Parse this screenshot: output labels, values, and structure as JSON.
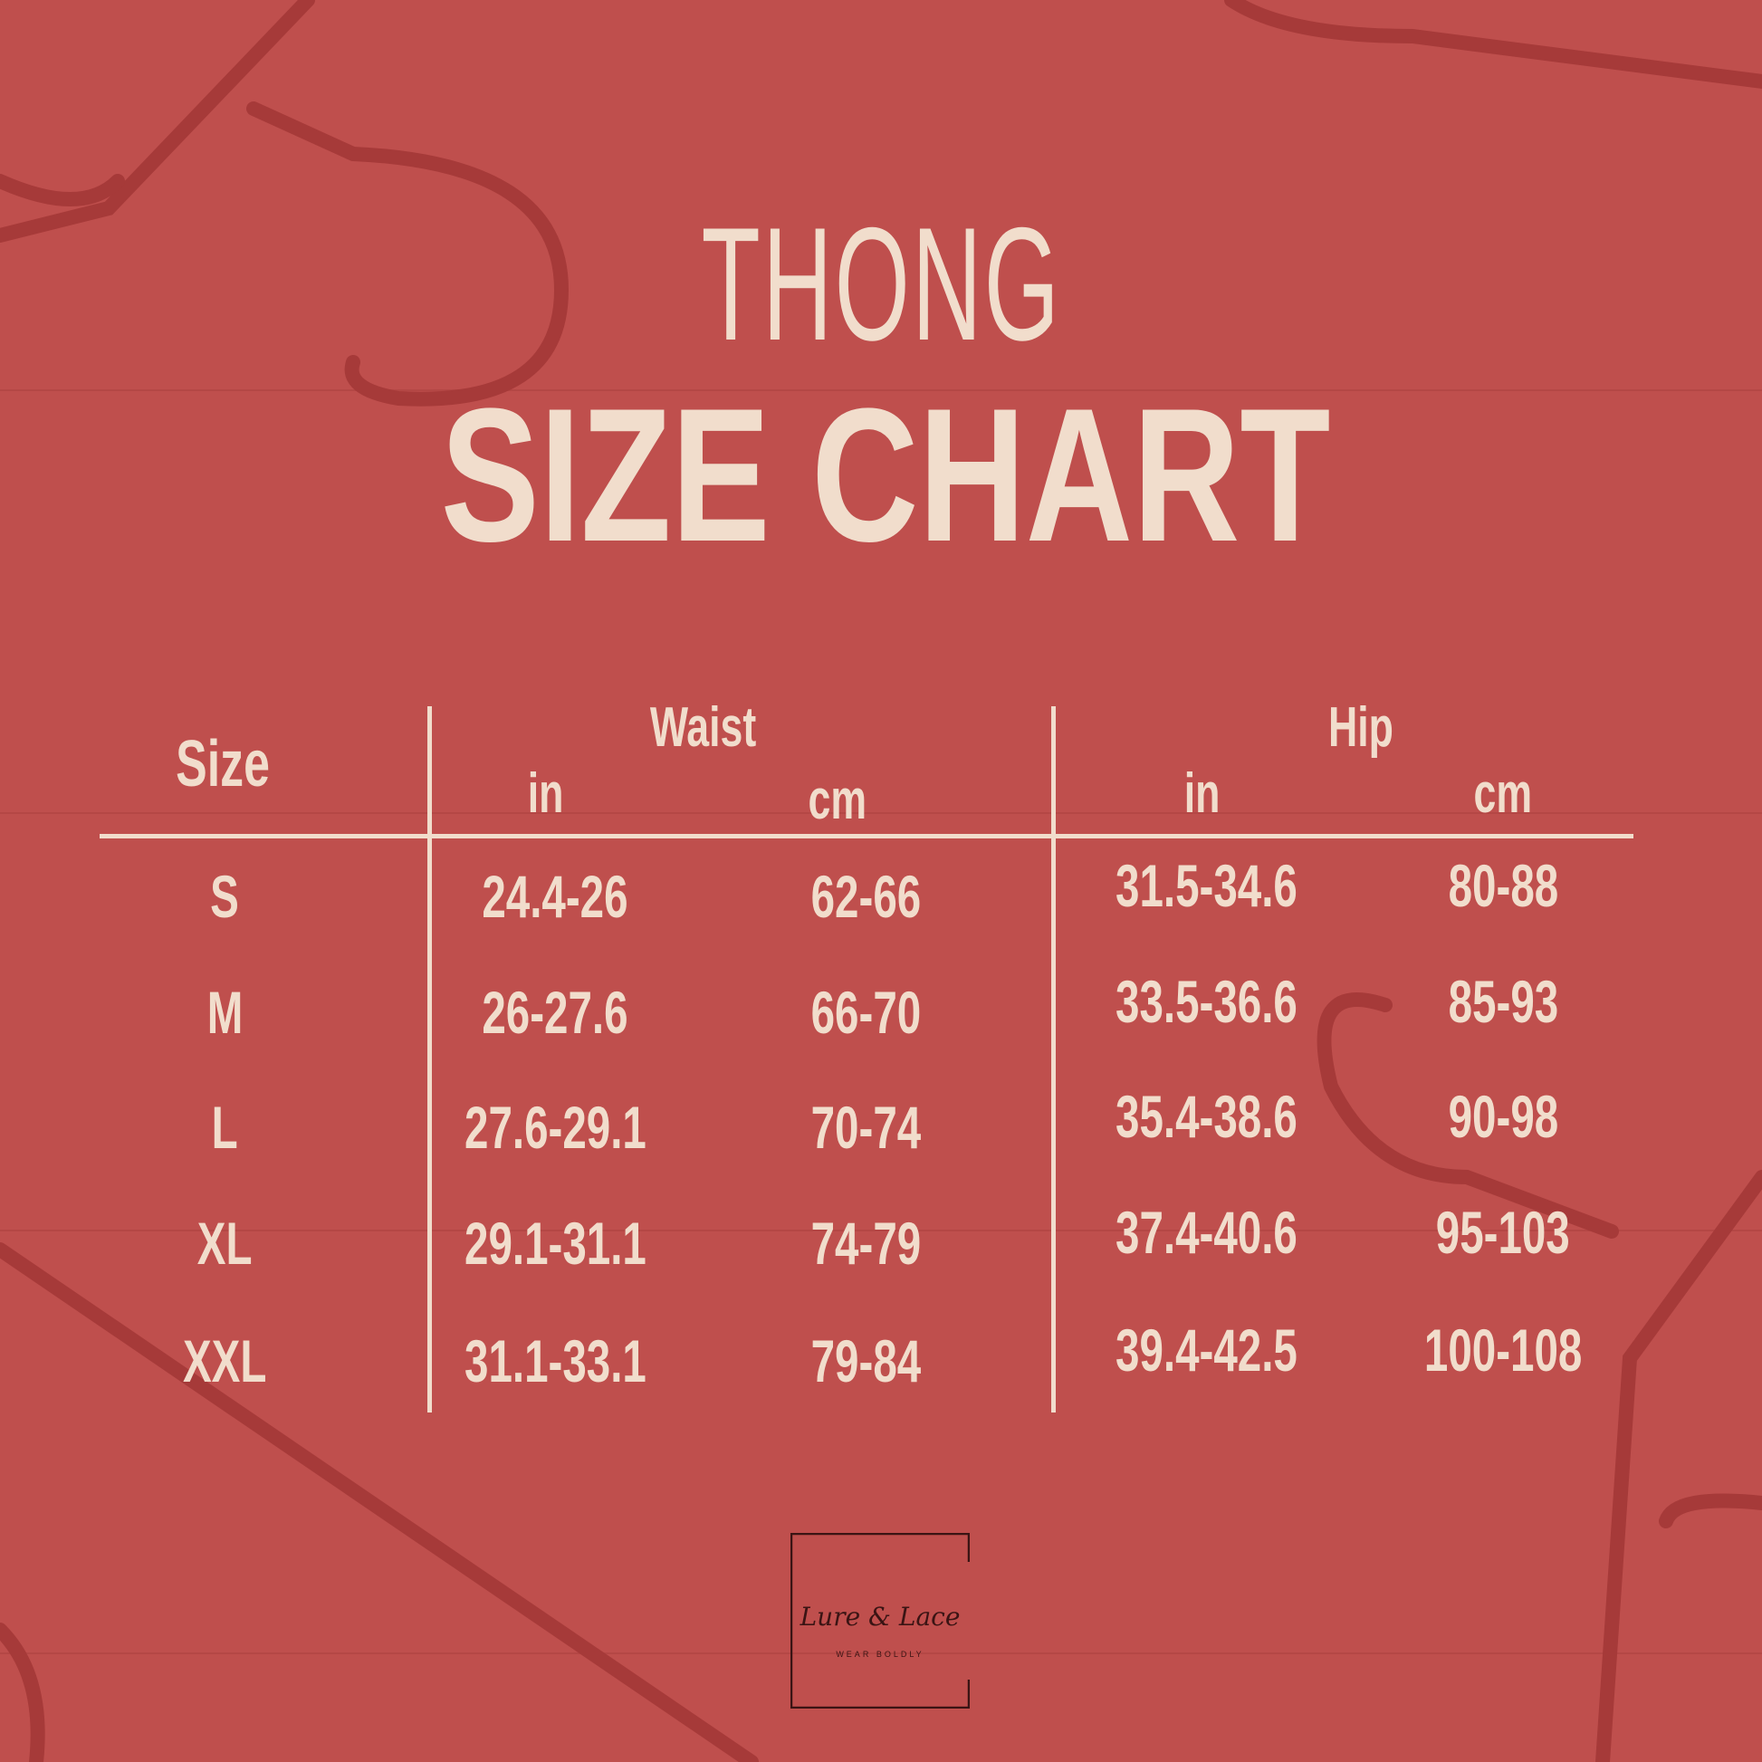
{
  "title": {
    "line1": "THONG",
    "line2": "SIZE CHART"
  },
  "table": {
    "size_header": "Size",
    "groups": [
      {
        "label": "Waist",
        "units": [
          "in",
          "cm"
        ]
      },
      {
        "label": "Hip",
        "units": [
          "in",
          "cm"
        ]
      }
    ],
    "rows": [
      {
        "size": "S",
        "waist_in": "24.4-26",
        "waist_cm": "62-66",
        "hip_in": "31.5-34.6",
        "hip_cm": "80-88"
      },
      {
        "size": "M",
        "waist_in": "26-27.6",
        "waist_cm": "66-70",
        "hip_in": "33.5-36.6",
        "hip_cm": "85-93"
      },
      {
        "size": "L",
        "waist_in": "27.6-29.1",
        "waist_cm": "70-74",
        "hip_in": "35.4-38.6",
        "hip_cm": "90-98"
      },
      {
        "size": "XL",
        "waist_in": "29.1-31.1",
        "waist_cm": "74-79",
        "hip_in": "37.4-40.6",
        "hip_cm": "95-103"
      },
      {
        "size": "XXL",
        "waist_in": "31.1-33.1",
        "waist_cm": "79-84",
        "hip_in": "39.4-42.5",
        "hip_cm": "100-108"
      }
    ]
  },
  "logo": {
    "name": "Lure & Lace",
    "tagline": "WEAR BOLDLY"
  },
  "colors": {
    "background": "#bf4f4d",
    "text": "#f1ddcc",
    "logo": "#3a1414"
  }
}
